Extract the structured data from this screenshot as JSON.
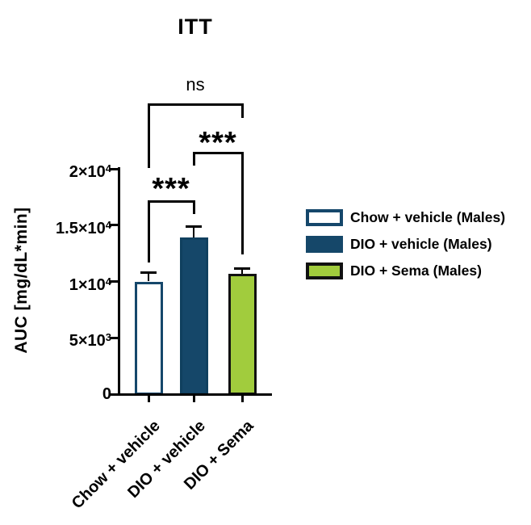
{
  "chart_data": {
    "type": "bar",
    "title": "ITT",
    "ylabel": "AUC [mg/dL*min]",
    "xlabel": "",
    "categories": [
      "Chow + vehicle",
      "DIO + vehicle",
      "DIO + Sema"
    ],
    "values": [
      10000,
      13900,
      10650
    ],
    "error_sem": [
      820,
      950,
      530
    ],
    "ylim": [
      0,
      20000
    ],
    "grid": "off",
    "legend_position": "right",
    "yticks": [
      {
        "value": 0,
        "base": "0",
        "sup": ""
      },
      {
        "value": 5000,
        "base": "5×10",
        "sup": "3"
      },
      {
        "value": 10000,
        "base": "1×10",
        "sup": "4"
      },
      {
        "value": 15000,
        "base": "1.5×10",
        "sup": "4"
      },
      {
        "value": 20000,
        "base": "2×10",
        "sup": "4"
      }
    ],
    "significance": [
      {
        "comparison": "Chow + vehicle vs DIO + vehicle",
        "label": "***"
      },
      {
        "comparison": "DIO + vehicle vs DIO + Sema",
        "label": "***"
      },
      {
        "comparison": "Chow + vehicle vs DIO + Sema",
        "label": "ns"
      }
    ],
    "bar_styles": [
      {
        "fill": "#ffffff",
        "border": "#15476b"
      },
      {
        "fill": "#154769",
        "border": "#10405f"
      },
      {
        "fill": "#a1cc3d",
        "border": "#111111"
      }
    ],
    "legend": [
      {
        "label": "Chow + vehicle (Males)",
        "fill": "#ffffff",
        "border": "#15476b"
      },
      {
        "label": "DIO + vehicle (Males)",
        "fill": "#154769",
        "border": "#154769"
      },
      {
        "label": "DIO + Sema (Males)",
        "fill": "#a1cc3d",
        "border": "#111111"
      }
    ],
    "colors": {
      "axis": "#000000",
      "navy": "#154769",
      "green": "#a1cc3d",
      "text": "#000000"
    }
  }
}
